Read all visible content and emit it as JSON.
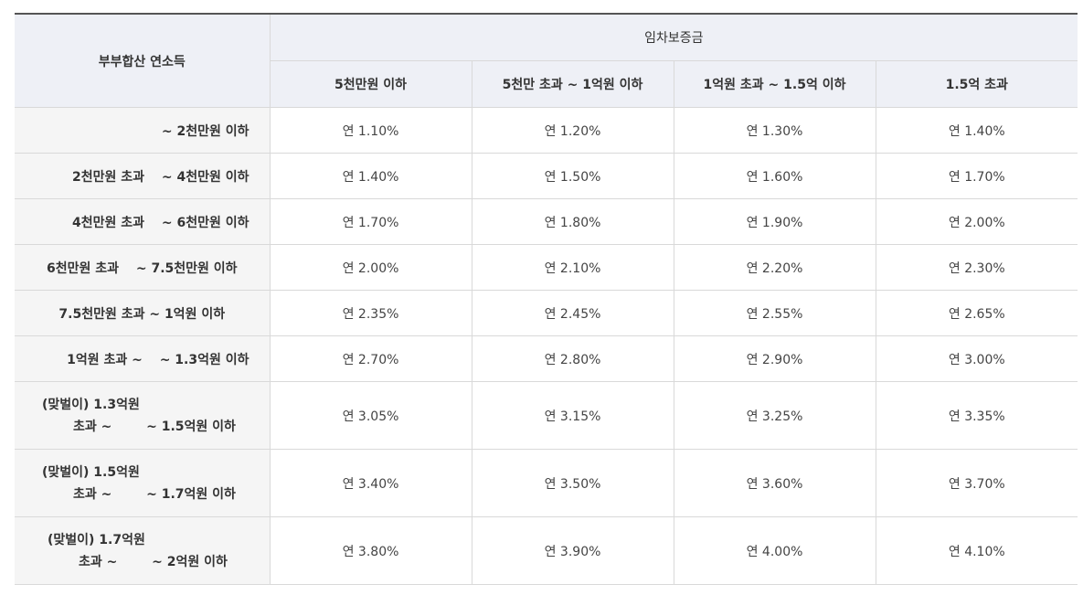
{
  "header": {
    "row_label": "부부합산 연소득",
    "group_label": "임차보증금",
    "columns": [
      "5천만원 이하",
      "5천만 초과 ~ 1억원 이하",
      "1억원 초과 ~ 1.5억 이하",
      "1.5억 초과"
    ]
  },
  "rows": [
    {
      "label_lines": [
        "~ 2천만원 이하"
      ],
      "rates": [
        "연 1.10%",
        "연 1.20%",
        "연 1.30%",
        "연 1.40%"
      ]
    },
    {
      "label_lines": [
        "2천만원 초과 　~ 4천만원 이하"
      ],
      "rates": [
        "연 1.40%",
        "연 1.50%",
        "연 1.60%",
        "연 1.70%"
      ]
    },
    {
      "label_lines": [
        "4천만원 초과 　~ 6천만원 이하"
      ],
      "rates": [
        "연 1.70%",
        "연 1.80%",
        "연 1.90%",
        "연 2.00%"
      ]
    },
    {
      "label_lines": [
        "6천만원 초과 　~ 7.5천만원 이하"
      ],
      "rates": [
        "연 2.00%",
        "연 2.10%",
        "연 2.20%",
        "연 2.30%"
      ]
    },
    {
      "label_lines": [
        "7.5천만원 초과 ~ 1억원 이하"
      ],
      "rates": [
        "연 2.35%",
        "연 2.45%",
        "연 2.55%",
        "연 2.65%"
      ]
    },
    {
      "label_lines": [
        "1억원 초과 ~ 　~ 1.3억원 이하"
      ],
      "rates": [
        "연 2.70%",
        "연 2.80%",
        "연 2.90%",
        "연 3.00%"
      ]
    },
    {
      "label_lines": [
        "(맞벌이) 1.3억원",
        "초과 ~ 　　 ~ 1.5억원 이하"
      ],
      "rates": [
        "연 3.05%",
        "연 3.15%",
        "연 3.25%",
        "연 3.35%"
      ]
    },
    {
      "label_lines": [
        "(맞벌이) 1.5억원",
        "초과 ~ 　　 ~ 1.7억원 이하"
      ],
      "rates": [
        "연 3.40%",
        "연 3.50%",
        "연 3.60%",
        "연 3.70%"
      ]
    },
    {
      "label_lines": [
        "(맞벌이) 1.7억원",
        "초과 ~ 　　 ~ 2억원 이하"
      ],
      "rates": [
        "연 3.80%",
        "연 3.90%",
        "연 4.00%",
        "연 4.10%"
      ]
    }
  ]
}
